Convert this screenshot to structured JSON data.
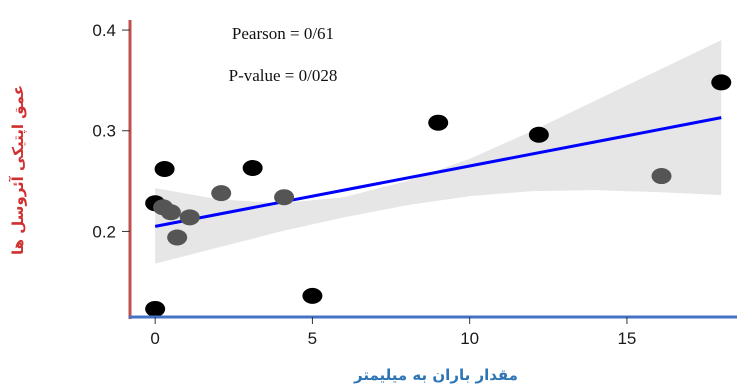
{
  "chart_data": {
    "type": "scatter",
    "title": "",
    "xlabel": "مقدار باران به میلیمتر",
    "ylabel": "عمق اپتیکی آئروسل ها",
    "xlim": [
      -0.8,
      18.5
    ],
    "ylim": [
      0.115,
      0.41
    ],
    "x_ticks": [
      0,
      5,
      10,
      15
    ],
    "x_tick_labels": [
      "0",
      "5",
      "10",
      "15"
    ],
    "y_ticks": [
      0.2,
      0.3,
      0.4
    ],
    "y_tick_labels": [
      "0.2",
      "0.3",
      "0.4"
    ],
    "grid": false,
    "annotations": [
      "Pearson = 0/61",
      "P-value = 0/028"
    ],
    "points": [
      {
        "x": 0.0,
        "y": 0.123,
        "color": "#000000"
      },
      {
        "x": 0.0,
        "y": 0.228,
        "color": "#000000"
      },
      {
        "x": 0.3,
        "y": 0.262,
        "color": "#000000"
      },
      {
        "x": 0.25,
        "y": 0.224,
        "color": "#555555"
      },
      {
        "x": 0.5,
        "y": 0.219,
        "color": "#555555"
      },
      {
        "x": 0.7,
        "y": 0.194,
        "color": "#555555"
      },
      {
        "x": 1.1,
        "y": 0.214,
        "color": "#555555"
      },
      {
        "x": 2.1,
        "y": 0.238,
        "color": "#555555"
      },
      {
        "x": 3.1,
        "y": 0.263,
        "color": "#000000"
      },
      {
        "x": 4.1,
        "y": 0.234,
        "color": "#555555"
      },
      {
        "x": 5.0,
        "y": 0.136,
        "color": "#000000"
      },
      {
        "x": 9.0,
        "y": 0.308,
        "color": "#000000"
      },
      {
        "x": 12.2,
        "y": 0.296,
        "color": "#000000"
      },
      {
        "x": 16.1,
        "y": 0.255,
        "color": "#555555"
      },
      {
        "x": 18.0,
        "y": 0.348,
        "color": "#000000"
      }
    ],
    "regression": {
      "x": [
        0,
        18
      ],
      "y": [
        0.205,
        0.313
      ],
      "color": "#0000ff"
    },
    "confidence_band": {
      "x": [
        0,
        2,
        4,
        6,
        8,
        10,
        12,
        14,
        16,
        18
      ],
      "lower": [
        0.168,
        0.184,
        0.2,
        0.214,
        0.226,
        0.235,
        0.24,
        0.241,
        0.239,
        0.236
      ],
      "upper": [
        0.243,
        0.232,
        0.228,
        0.234,
        0.25,
        0.272,
        0.3,
        0.33,
        0.36,
        0.39
      ],
      "color": "#e6e6e6"
    },
    "axis_colors": {
      "x": "#4472c4",
      "y": "#c0504d"
    }
  }
}
